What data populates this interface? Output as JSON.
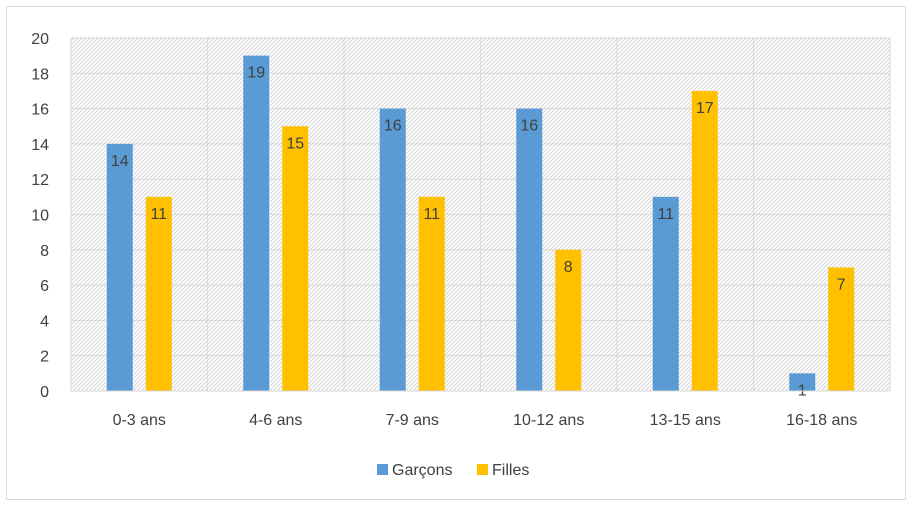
{
  "chart_data": {
    "type": "bar",
    "categories": [
      "0-3 ans",
      "4-6 ans",
      "7-9 ans",
      "10-12 ans",
      "13-15 ans",
      "16-18 ans"
    ],
    "series": [
      {
        "name": "Garçons",
        "values": [
          14,
          19,
          16,
          16,
          11,
          1
        ],
        "color": "#5b9bd5"
      },
      {
        "name": "Filles",
        "values": [
          11,
          15,
          11,
          8,
          17,
          7
        ],
        "color": "#ffc000"
      }
    ],
    "y_ticks": [
      "0",
      "2",
      "4",
      "6",
      "8",
      "10",
      "12",
      "14",
      "16",
      "18",
      "20"
    ],
    "ylim": [
      0,
      20
    ],
    "grid": true,
    "legend_position": "bottom",
    "data_labels": true
  }
}
